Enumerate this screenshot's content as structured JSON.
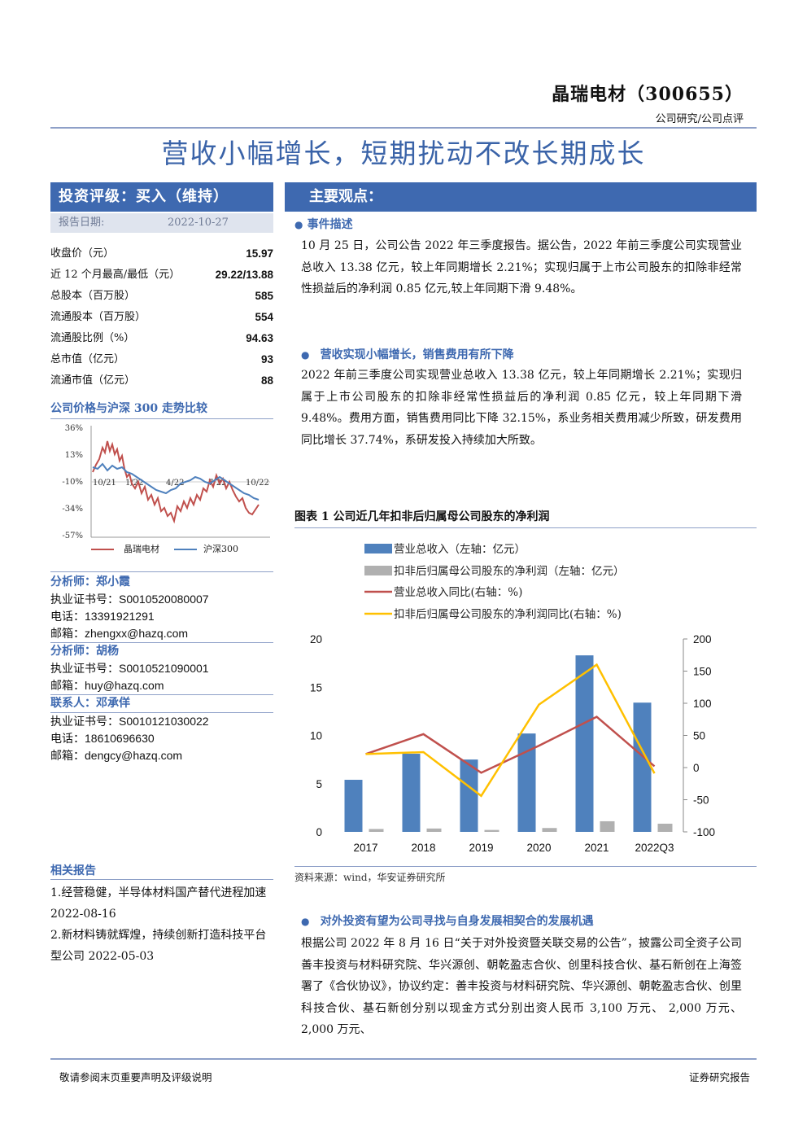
{
  "header": {
    "company": "晶瑞电材（300655）",
    "category": "公司研究/公司点评",
    "headline": "营收小幅增长，短期扰动不改长期成长"
  },
  "left": {
    "rating": "投资评级：买入（维持）",
    "date_label": "报告日期:",
    "date_value": "2022-10-27",
    "stats": [
      {
        "label": "收盘价（元）",
        "value": "15.97"
      },
      {
        "label": "近 12 个月最高/最低（元）",
        "value": "29.22/13.88"
      },
      {
        "label": "总股本（百万股）",
        "value": "585"
      },
      {
        "label": "流通股本（百万股）",
        "value": "554"
      },
      {
        "label": "流通股比例（%）",
        "value": "94.63"
      },
      {
        "label": "总市值（亿元）",
        "value": "93"
      },
      {
        "label": "流通市值（亿元）",
        "value": "88"
      }
    ],
    "price_chart_title": "公司价格与沪深 300 走势比较",
    "price_chart": {
      "y_ticks": [
        "36%",
        "13%",
        "-10%",
        "-34%",
        "-57%"
      ],
      "x_ticks": [
        "10/21",
        "1/22",
        "4/22",
        "7/22",
        "10/22"
      ],
      "legend": [
        "晶瑞电材",
        "沪深300"
      ],
      "colors": {
        "stock": "#c0504d",
        "index": "#4f81bd"
      }
    },
    "analysts": [
      {
        "title": "分析师：郑小霞",
        "lines": [
          "执业证书号：S0010520080007",
          "电话：13391921291",
          "邮箱：zhengxx@hazq.com"
        ]
      },
      {
        "title": "分析师：胡杨",
        "lines": [
          "执业证书号：S0010521090001",
          "邮箱：huy@hazq.com"
        ]
      },
      {
        "title": "联系人：邓承佯",
        "lines": [
          "执业证书号：S0010121030022",
          "电话：18610696630",
          "邮箱：dengcy@hazq.com"
        ]
      }
    ],
    "related_title": "相关报告",
    "related": [
      "1.经营稳健，半导体材料国产替代进程加速 2022-08-16",
      "2.新材料铸就辉煌，持续创新打造科技平台型公司 2022-05-03"
    ]
  },
  "main": {
    "views_title": "主要观点：",
    "sec1_title": "事件描述",
    "sec1_text": "10 月 25 日，公司公告 2022 年三季度报告。据公告，2022 年前三季度公司实现营业总收入 13.38 亿元，较上年同期增长 2.21%；实现归属于上市公司股东的扣除非经常性损益后的净利润 0.85 亿元,较上年同期下滑 9.48%。",
    "sec2_title": "营收实现小幅增长，销售费用有所下降",
    "sec2_text": "2022 年前三季度公司实现营业总收入 13.38 亿元，较上年同期增长 2.21%；实现归属于上市公司股东的扣除非经常性损益后的净利润 0.85 亿元，较上年同期下滑 9.48%。费用方面，销售费用同比下降 32.15%，系业务相关费用减少所致，研发费用同比增长 37.74%，系研发投入持续加大所致。",
    "figure_title": "图表 1 公司近几年扣非后归属母公司股东的净利润",
    "source": "资料来源：wind，华安证券研究所",
    "sec3_title": "对外投资有望为公司寻找与自身发展相契合的发展机遇",
    "sec3_text": "根据公司 2022 年 8 月 16 日“关于对外投资暨关联交易的公告”，披露公司全资子公司善丰投资与材料研究院、华兴源创、朝乾盈志合伙、创里科技合伙、基石新创在上海签署了《合伙协议》，协议约定：善丰投资与材料研究院、华兴源创、朝乾盈志合伙、创里科技合伙、基石新创分别以现金方式分别出资人民币 3,100 万元、 2,000 万元、 2,000 万元、"
  },
  "chart_data": {
    "type": "bar",
    "categories": [
      "2017",
      "2018",
      "2019",
      "2020",
      "2021",
      "2022Q3"
    ],
    "series": [
      {
        "name": "营业总收入（左轴：亿元）",
        "kind": "bar",
        "axis": "left",
        "color": "#4f81bd",
        "values": [
          5.4,
          8.1,
          7.5,
          10.2,
          18.3,
          13.4
        ]
      },
      {
        "name": "扣非后归属母公司股东的净利润（左轴：亿元）",
        "kind": "bar",
        "axis": "left",
        "color": "#b0b0b0",
        "values": [
          0.3,
          0.35,
          0.2,
          0.4,
          1.1,
          0.85
        ]
      },
      {
        "name": "营业总收入同比(右轴：%)",
        "kind": "line",
        "axis": "right",
        "color": "#c0504d",
        "values": [
          21,
          52,
          -8,
          34,
          79,
          2
        ]
      },
      {
        "name": "扣非后归属母公司股东的净利润同比(右轴：%)",
        "kind": "line",
        "axis": "right",
        "color": "#ffc000",
        "values": [
          21,
          24,
          -44,
          98,
          160,
          -9
        ]
      }
    ],
    "y_left": {
      "min": 0,
      "max": 20,
      "ticks": [
        "0",
        "5",
        "10",
        "15",
        "20"
      ]
    },
    "y_right": {
      "min": -100,
      "max": 200,
      "ticks": [
        "-100",
        "-50",
        "0",
        "50",
        "100",
        "150",
        "200"
      ]
    },
    "legend_position": "top",
    "grid": false
  }
}
